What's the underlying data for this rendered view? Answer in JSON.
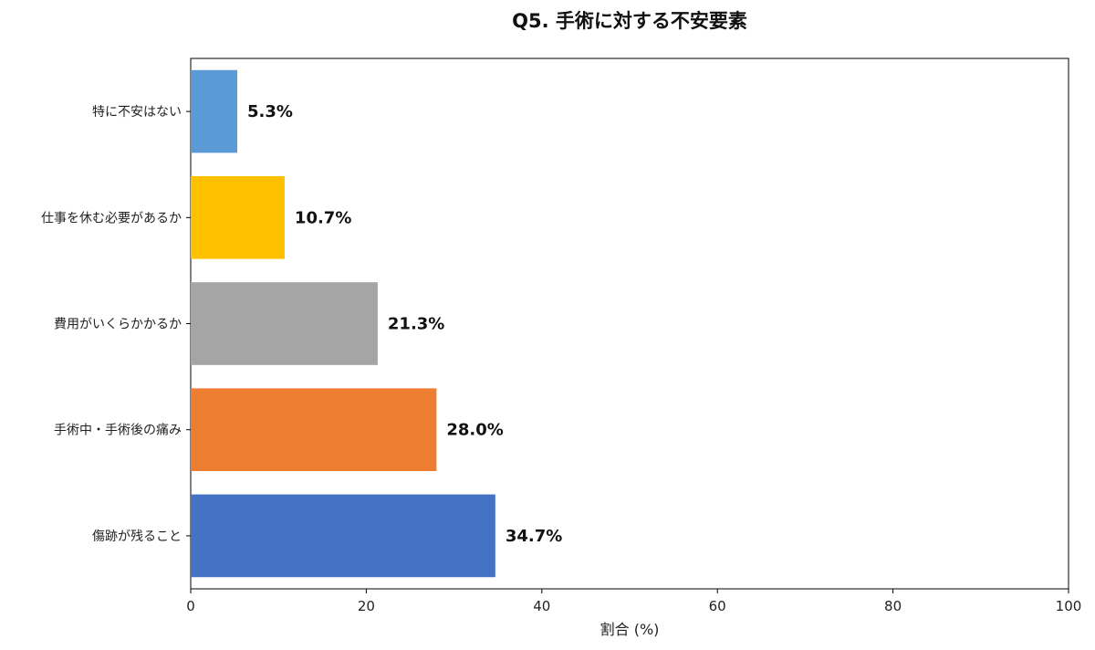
{
  "chart_data": {
    "type": "bar",
    "orientation": "horizontal",
    "title": "Q5. 手術に対する不安要素",
    "xlabel": "割合 (%)",
    "ylabel": "",
    "xlim": [
      0,
      100
    ],
    "xticks": [
      0,
      20,
      40,
      60,
      80,
      100
    ],
    "grid": false,
    "legend": "none",
    "categories": [
      "特に不安はない",
      "仕事を休む必要があるか",
      "費用がいくらかかるか",
      "手術中・手術後の痛み",
      "傷跡が残ること"
    ],
    "values": [
      5.3,
      10.7,
      21.3,
      28.0,
      34.7
    ],
    "value_labels": [
      "5.3%",
      "10.7%",
      "21.3%",
      "28.0%",
      "34.7%"
    ],
    "colors": [
      "#5b9bd5",
      "#ffc000",
      "#a5a5a5",
      "#ed7d31",
      "#4472c4"
    ]
  }
}
